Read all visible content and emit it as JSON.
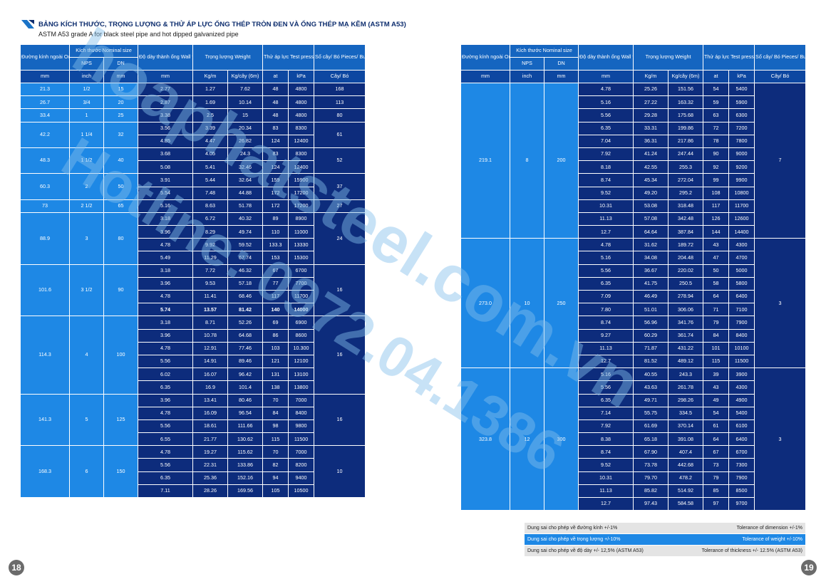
{
  "header": {
    "title": "BẢNG KÍCH THƯỚC, TRỌNG LƯỢNG & THỬ ÁP LỰC ỐNG THÉP TRÒN ĐEN VÀ ỐNG THÉP MẠ KẼM (ASTM A53)",
    "subtitle": "ASTM A53 grade A for black steel pipe and hot dipped galvanized pipe"
  },
  "table_header": {
    "outside_diameter": "Đường kính ngoài Outside diameter",
    "nominal_size": "Kích thước Nominal size",
    "nps": "NPS",
    "dn": "DN",
    "wall_thickness": "Độ dày thành ống Wall thickness",
    "weight": "Trọng lượng Weight",
    "test_pressure": "Thử áp lực Test pressura grade A",
    "pieces": "Số cây/ Bó Pieces/ Bundle"
  },
  "units": [
    "mm",
    "inch",
    "mm",
    "mm",
    "Kg/m",
    "Kg/cây (6m)",
    "at",
    "kPa",
    "Cây/ Bó"
  ],
  "left_groups": [
    {
      "od": "21.3",
      "nps": "1/2",
      "dn": "15",
      "pieces": "168",
      "rows": [
        [
          "2.77",
          "1.27",
          "7.62",
          "48",
          "4800"
        ]
      ]
    },
    {
      "od": "26.7",
      "nps": "3/4",
      "dn": "20",
      "pieces": "113",
      "rows": [
        [
          "2.87",
          "1.69",
          "10.14",
          "48",
          "4800"
        ]
      ]
    },
    {
      "od": "33.4",
      "nps": "1",
      "dn": "25",
      "pieces": "80",
      "rows": [
        [
          "3.38",
          "2.5",
          "15",
          "48",
          "4800"
        ]
      ]
    },
    {
      "od": "42.2",
      "nps": "1 1/4",
      "dn": "32",
      "pieces": "61",
      "rows": [
        [
          "3.56",
          "3.39",
          "20.34",
          "83",
          "8300"
        ],
        [
          "4.85",
          "4.47",
          "26.82",
          "124",
          "12400"
        ]
      ]
    },
    {
      "od": "48.3",
      "nps": "1 1/2",
      "dn": "40",
      "pieces": "52",
      "rows": [
        [
          "3.68",
          "4.05",
          "24.3",
          "83",
          "8300"
        ],
        [
          "5.08",
          "5.41",
          "32.46",
          "124",
          "12400"
        ]
      ]
    },
    {
      "od": "60.3",
      "nps": "2",
      "dn": "50",
      "pieces": "37",
      "rows": [
        [
          "3.91",
          "5.44",
          "32.64",
          "159",
          "15900"
        ],
        [
          "5.54",
          "7.48",
          "44.88",
          "172",
          "17200"
        ]
      ]
    },
    {
      "od": "73",
      "nps": "2 1/2",
      "dn": "65",
      "pieces": "27",
      "rows": [
        [
          "5.16",
          "8.63",
          "51.78",
          "172",
          "17200"
        ]
      ]
    },
    {
      "od": "88.9",
      "nps": "3",
      "dn": "80",
      "pieces": "24",
      "rows": [
        [
          "3.18",
          "6.72",
          "40.32",
          "89",
          "8900"
        ],
        [
          "3.96",
          "8.29",
          "49.74",
          "110",
          "11000"
        ],
        [
          "4.78",
          "9.92",
          "59.52",
          "133.3",
          "13330"
        ],
        [
          "5.49",
          "11.29",
          "67.74",
          "153",
          "15300"
        ]
      ]
    },
    {
      "od": "101.6",
      "nps": "3 1/2",
      "dn": "90",
      "pieces": "16",
      "rows": [
        [
          "3.18",
          "7.72",
          "46.32",
          "67",
          "6700"
        ],
        [
          "3.96",
          "9.53",
          "57.18",
          "77",
          "7700"
        ],
        [
          "4.78",
          "11.41",
          "68.46",
          "117",
          "11700"
        ],
        [
          "5.74",
          "13.57",
          "81.42",
          "140",
          "14000"
        ]
      ]
    },
    {
      "od": "114.3",
      "nps": "4",
      "dn": "100",
      "pieces": "16",
      "rows": [
        [
          "3.18",
          "8.71",
          "52.26",
          "69",
          "6900"
        ],
        [
          "3.96",
          "10.78",
          "64.68",
          "86",
          "8600"
        ],
        [
          "4.78",
          "12.91",
          "77.46",
          "103",
          "10.300"
        ],
        [
          "5.56",
          "14.91",
          "89.46",
          "121",
          "12100"
        ],
        [
          "6.02",
          "16.07",
          "96.42",
          "131",
          "13100"
        ],
        [
          "6.35",
          "16.9",
          "101.4",
          "138",
          "13800"
        ]
      ]
    },
    {
      "od": "141.3",
      "nps": "5",
      "dn": "125",
      "pieces": "16",
      "rows": [
        [
          "3.96",
          "13.41",
          "80.46",
          "70",
          "7000"
        ],
        [
          "4.78",
          "16.09",
          "96.54",
          "84",
          "8400"
        ],
        [
          "5.56",
          "18.61",
          "111.66",
          "98",
          "9800"
        ],
        [
          "6.55",
          "21.77",
          "130.62",
          "115",
          "11500"
        ]
      ]
    },
    {
      "od": "168.3",
      "nps": "6",
      "dn": "150",
      "pieces": "10",
      "rows": [
        [
          "4.78",
          "19.27",
          "115.62",
          "70",
          "7000"
        ],
        [
          "5.56",
          "22.31",
          "133.86",
          "82",
          "8200"
        ],
        [
          "6.35",
          "25.36",
          "152.16",
          "94",
          "9400"
        ],
        [
          "7.11",
          "28.26",
          "169.56",
          "105",
          "10500"
        ]
      ]
    }
  ],
  "right_groups": [
    {
      "od": "219.1",
      "nps": "8",
      "dn": "200",
      "pieces": "7",
      "rows": [
        [
          "4.78",
          "25.26",
          "151.56",
          "54",
          "5400"
        ],
        [
          "5.16",
          "27.22",
          "163.32",
          "59",
          "5900"
        ],
        [
          "5.56",
          "29.28",
          "175.68",
          "63",
          "6300"
        ],
        [
          "6.35",
          "33.31",
          "199.86",
          "72",
          "7200"
        ],
        [
          "7.04",
          "36.31",
          "217.86",
          "78",
          "7800"
        ],
        [
          "7.92",
          "41.24",
          "247.44",
          "90",
          "9000"
        ],
        [
          "8.18",
          "42.55",
          "255.3",
          "92",
          "9200"
        ],
        [
          "8.74",
          "45.34",
          "272.04",
          "99",
          "9900"
        ],
        [
          "9.52",
          "49.20",
          "295.2",
          "108",
          "10800"
        ],
        [
          "10.31",
          "53.08",
          "318.48",
          "117",
          "11700"
        ],
        [
          "11.13",
          "57.08",
          "342.48",
          "126",
          "12600"
        ],
        [
          "12.7",
          "64.64",
          "387.84",
          "144",
          "14400"
        ]
      ]
    },
    {
      "od": "273.0",
      "nps": "10",
      "dn": "250",
      "pieces": "3",
      "rows": [
        [
          "4.78",
          "31.62",
          "189.72",
          "43",
          "4300"
        ],
        [
          "5.16",
          "34.08",
          "204.48",
          "47",
          "4700"
        ],
        [
          "5.56",
          "36.67",
          "220.02",
          "50",
          "5000"
        ],
        [
          "6.35",
          "41.75",
          "250.5",
          "58",
          "5800"
        ],
        [
          "7.09",
          "46.49",
          "278.94",
          "64",
          "6400"
        ],
        [
          "7.80",
          "51.01",
          "306.06",
          "71",
          "7100"
        ],
        [
          "8.74",
          "56.96",
          "341.76",
          "79",
          "7900"
        ],
        [
          "9.27",
          "60.29",
          "361.74",
          "84",
          "8400"
        ],
        [
          "11.13",
          "71.87",
          "431.22",
          "101",
          "10100"
        ],
        [
          "12.7",
          "81.52",
          "489.12",
          "115",
          "11500"
        ]
      ]
    },
    {
      "od": "323.8",
      "nps": "12",
      "dn": "300",
      "pieces": "3",
      "rows": [
        [
          "5.16",
          "40.55",
          "243.3",
          "39",
          "3900"
        ],
        [
          "5.56",
          "43.63",
          "261.78",
          "43",
          "4300"
        ],
        [
          "6.35",
          "49.71",
          "298.26",
          "49",
          "4900"
        ],
        [
          "7.14",
          "55.75",
          "334.5",
          "54",
          "5400"
        ],
        [
          "7.92",
          "61.69",
          "370.14",
          "61",
          "6100"
        ],
        [
          "8.38",
          "65.18",
          "391.08",
          "64",
          "6400"
        ],
        [
          "8.74",
          "67.90",
          "407.4",
          "67",
          "6700"
        ],
        [
          "9.52",
          "73.78",
          "442.68",
          "73",
          "7300"
        ],
        [
          "10.31",
          "79.70",
          "478.2",
          "79",
          "7900"
        ],
        [
          "11.13",
          "85.82",
          "514.92",
          "85",
          "8500"
        ],
        [
          "12.7",
          "97.43",
          "584.58",
          "97",
          "9700"
        ]
      ]
    }
  ],
  "tolerances": {
    "r1_vn": "Dung sai cho phép về đường kính +/-1%",
    "r1_en": "Tolerance of dimension +/-1%",
    "r2_vn": "Dung sai cho phép về trọng lượng +/-10%",
    "r2_en": "Tolerance of weight +/-10%",
    "r3_vn": "Dung sai cho phép về độ dày +/- 12,5% (ASTM A53)",
    "r3_en": "Tolerance of thickness +/- 12.5% (ASTM A53)"
  },
  "watermark": {
    "line1": "hoaphatsteel.com.vn",
    "line2": "Hotline: 0972.04.1386"
  },
  "page_numbers": {
    "left": "18",
    "right": "19"
  }
}
